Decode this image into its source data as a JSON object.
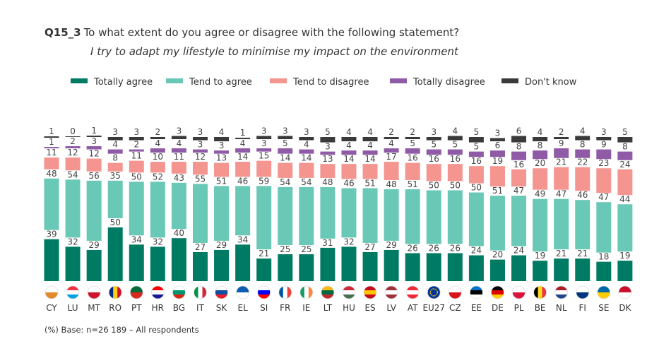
{
  "title": {
    "code": "Q15_3",
    "question": "To what extent do you agree or disagree with the following statement?",
    "statement": "I try to adapt my lifestyle to minimise my impact on the environment"
  },
  "footer": "(%) Base: n=26 189 – All respondents",
  "chart_data": {
    "type": "bar",
    "stacked": true,
    "unit": "%",
    "legend_position": "top",
    "categories": [
      "CY",
      "LU",
      "MT",
      "RO",
      "PT",
      "HR",
      "BG",
      "IT",
      "SK",
      "EL",
      "SI",
      "FR",
      "IE",
      "LT",
      "HU",
      "ES",
      "LV",
      "AT",
      "EU27",
      "CZ",
      "EE",
      "DE",
      "PL",
      "BE",
      "NL",
      "FI",
      "SE",
      "DK"
    ],
    "series": [
      {
        "name": "Totally agree",
        "color": "#007b63",
        "values": [
          39,
          32,
          29,
          50,
          34,
          32,
          40,
          27,
          29,
          34,
          21,
          25,
          25,
          31,
          32,
          27,
          29,
          26,
          26,
          26,
          24,
          20,
          24,
          19,
          21,
          21,
          18,
          19
        ]
      },
      {
        "name": "Tend to agree",
        "color": "#6ac8b6",
        "values": [
          48,
          54,
          56,
          35,
          50,
          52,
          43,
          55,
          51,
          46,
          59,
          54,
          54,
          48,
          46,
          51,
          48,
          51,
          50,
          50,
          50,
          51,
          47,
          49,
          47,
          46,
          47,
          44
        ]
      },
      {
        "name": "Tend to disagree",
        "color": "#f4958f",
        "values": [
          11,
          12,
          12,
          8,
          11,
          10,
          11,
          12,
          13,
          14,
          15,
          14,
          14,
          13,
          14,
          14,
          17,
          16,
          16,
          16,
          16,
          19,
          16,
          20,
          21,
          22,
          23,
          24
        ]
      },
      {
        "name": "Totally disagree",
        "color": "#8f5ba6",
        "values": [
          1,
          2,
          3,
          4,
          2,
          4,
          4,
          3,
          3,
          4,
          3,
          5,
          4,
          3,
          4,
          4,
          4,
          5,
          5,
          5,
          5,
          6,
          8,
          8,
          9,
          8,
          9,
          8
        ]
      },
      {
        "name": "Don't know",
        "color": "#3a3a3a",
        "values": [
          1,
          0,
          1,
          3,
          3,
          2,
          3,
          3,
          4,
          1,
          3,
          3,
          3,
          5,
          4,
          4,
          2,
          2,
          3,
          4,
          5,
          3,
          6,
          4,
          2,
          4,
          3,
          5
        ]
      }
    ]
  }
}
